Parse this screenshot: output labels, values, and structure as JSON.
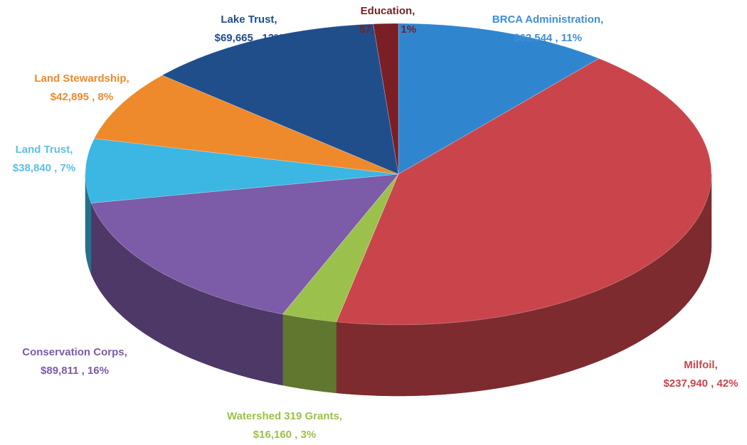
{
  "chart_data": {
    "type": "pie",
    "categories": [
      "BRCA Administration,",
      "Milfoil,",
      "Watershed 319 Grants,",
      "Conservation Corps,",
      "Land Trust,",
      "Land Stewardship,",
      "Lake Trust,",
      "Education,"
    ],
    "values": [
      62544,
      237940,
      16160,
      89811,
      38840,
      42895,
      69665,
      7244
    ],
    "value_labels": [
      "$62,544 , 11%",
      "$237,940 , 42%",
      "$16,160 , 3%",
      "$89,811 , 16%",
      "$38,840 , 7%",
      "$42,895 , 8%",
      "$69,665 , 12%",
      "$7,244 , 1%"
    ],
    "colors": [
      "#2f86cf",
      "#c9454b",
      "#9cc04c",
      "#7c5ba8",
      "#3cb6e2",
      "#ee8a2c",
      "#1f4e8b",
      "#7a1f26"
    ]
  }
}
